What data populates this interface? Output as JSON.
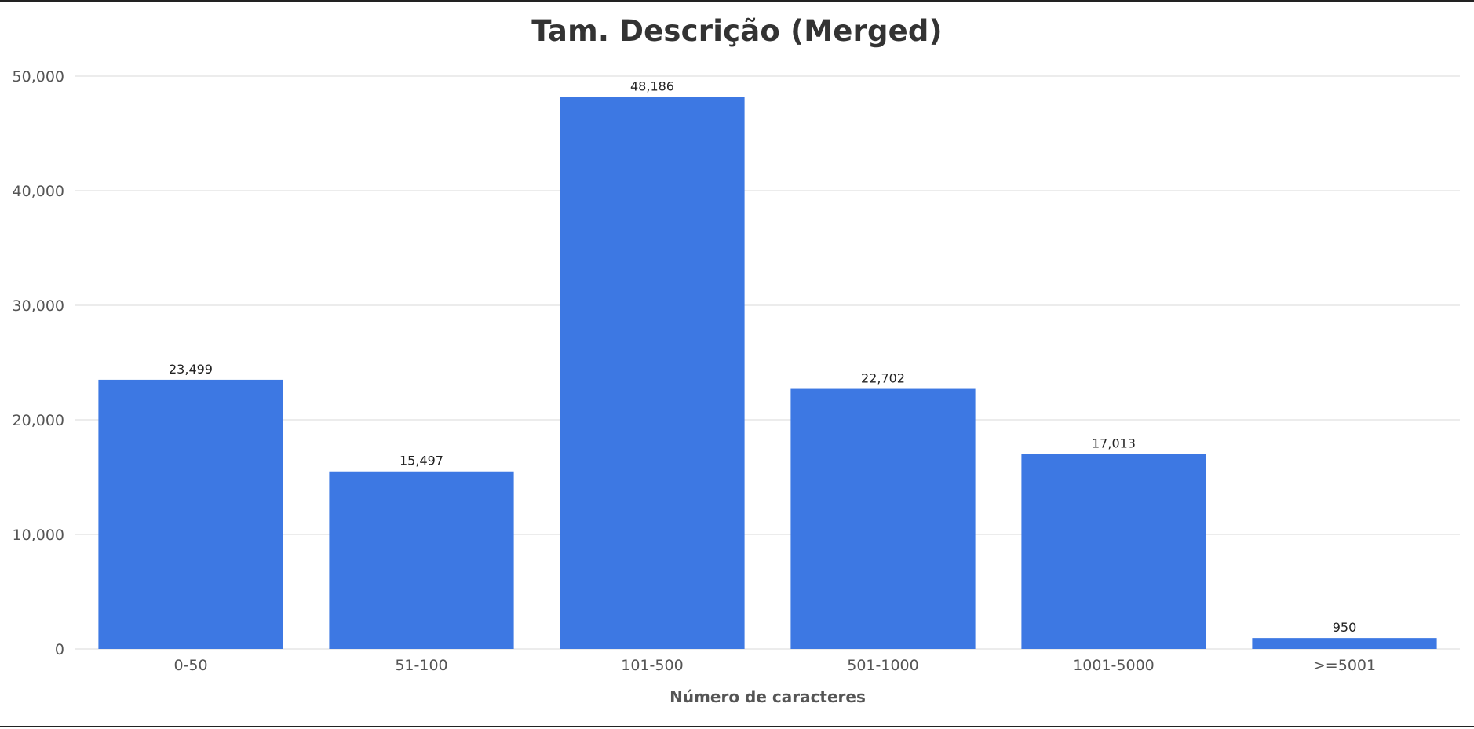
{
  "chart_data": {
    "type": "bar",
    "title": "Tam. Descrição (Merged)",
    "xlabel": "Número de caracteres",
    "ylabel": "",
    "categories": [
      "0-50",
      "51-100",
      "101-500",
      "501-1000",
      "1001-5000",
      ">=5001"
    ],
    "values": [
      23499,
      15497,
      48186,
      22702,
      17013,
      950
    ],
    "data_labels": [
      "23,499",
      "15,497",
      "48,186",
      "22,702",
      "17,013",
      "950"
    ],
    "ylim": [
      0,
      50000
    ],
    "yticks": [
      0,
      10000,
      20000,
      30000,
      40000,
      50000
    ],
    "ytick_labels": [
      "0",
      "10,000",
      "20,000",
      "30,000",
      "40,000",
      "50,000"
    ],
    "grid": true,
    "legend": "none",
    "bar_color": "#3d78e3"
  }
}
